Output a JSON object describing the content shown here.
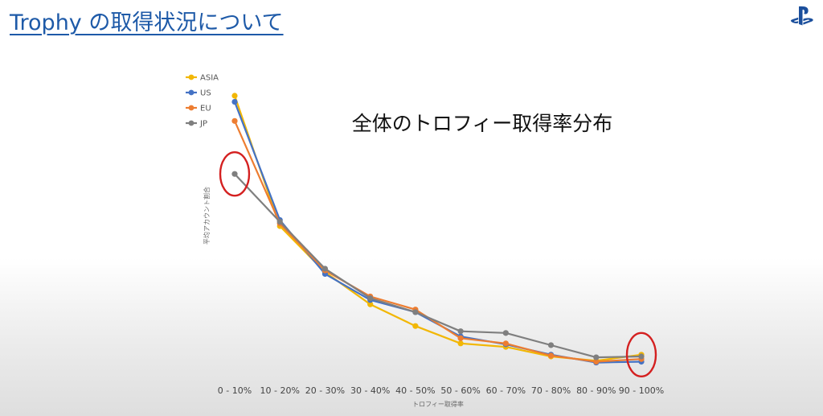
{
  "slide": {
    "title": "Trophy の取得状況について",
    "logo_icon": "playstation-logo-icon",
    "accent_color": "#1e5aa8"
  },
  "chart_data": {
    "type": "line",
    "title": "全体のトロフィー取得率分布",
    "xlabel": "トロフィー取得率",
    "ylabel": "平均アカウント割合",
    "categories": [
      "0 - 10%",
      "10 - 20%",
      "20 - 30%",
      "30 - 40%",
      "40 - 50%",
      "50 - 60%",
      "60 - 70%",
      "70 - 80%",
      "80 - 90%",
      "90 - 100%"
    ],
    "ylim": [
      0,
      35
    ],
    "y_ticks_shown": false,
    "grid": false,
    "legend_position": "top-left",
    "series": [
      {
        "name": "ASIA",
        "color": "#f2b705",
        "values": [
          32.5,
          17.5,
          12.2,
          8.5,
          6.0,
          4.0,
          3.6,
          2.5,
          2.0,
          2.7
        ]
      },
      {
        "name": "US",
        "color": "#4472c4",
        "values": [
          31.8,
          18.2,
          12.0,
          9.0,
          7.6,
          4.8,
          3.9,
          2.7,
          1.8,
          1.9
        ]
      },
      {
        "name": "EU",
        "color": "#ed7d31",
        "values": [
          29.6,
          17.8,
          12.4,
          9.4,
          7.9,
          4.6,
          4.0,
          2.6,
          1.9,
          2.2
        ]
      },
      {
        "name": "JP",
        "color": "#7f7f7f",
        "values": [
          23.5,
          18.0,
          12.6,
          9.2,
          7.6,
          5.4,
          5.2,
          3.8,
          2.4,
          2.5
        ]
      }
    ],
    "annotations": [
      {
        "type": "circle",
        "color": "#d42020",
        "at_category": "0 - 10%",
        "note_series": "JP"
      },
      {
        "type": "circle",
        "color": "#d42020",
        "at_category": "90 - 100%",
        "note_series": "ASIA"
      }
    ]
  }
}
